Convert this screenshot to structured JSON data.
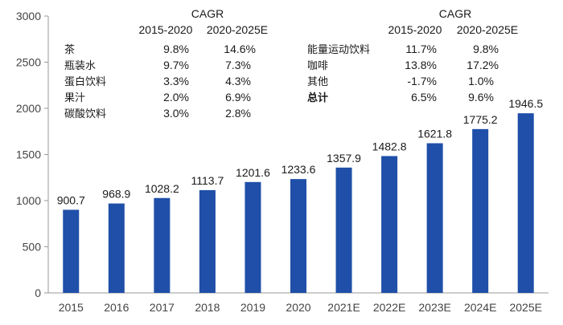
{
  "chart_data": {
    "type": "bar",
    "categories": [
      "2015",
      "2016",
      "2017",
      "2018",
      "2019",
      "2020",
      "2021E",
      "2022E",
      "2023E",
      "2024E",
      "2025E"
    ],
    "values": [
      900.7,
      968.9,
      1028.2,
      1113.7,
      1201.6,
      1233.6,
      1357.9,
      1482.8,
      1621.8,
      1775.2,
      1946.5
    ],
    "value_labels": [
      "900.7",
      "968.9",
      "1028.2",
      "1113.7",
      "1201.6",
      "1233.6",
      "1357.9",
      "1482.8",
      "1621.8",
      "1775.2",
      "1946.5"
    ],
    "ylim": [
      0,
      3000
    ],
    "yticks": [
      0,
      500,
      1000,
      1500,
      2000,
      2500,
      3000
    ],
    "ytick_labels": [
      "0",
      "500",
      "1000",
      "1500",
      "2000",
      "2500",
      "3000"
    ],
    "bar_color": "#1f4fa8",
    "grid": false,
    "legend": "none",
    "title": "",
    "xlabel": "",
    "ylabel": ""
  },
  "cagr_tables": [
    {
      "title": "CAGR",
      "headers": [
        "2015-2020",
        "2020-2025E"
      ],
      "rows": [
        {
          "name": "茶",
          "a": "9.8%",
          "b": "14.6%"
        },
        {
          "name": "瓶装水",
          "a": "9.7%",
          "b": "7.3%"
        },
        {
          "name": "蛋白饮料",
          "a": "3.3%",
          "b": "4.3%"
        },
        {
          "name": "果汁",
          "a": "2.0%",
          "b": "6.9%"
        },
        {
          "name": "碳酸饮料",
          "a": "3.0%",
          "b": "2.8%"
        }
      ]
    },
    {
      "title": "CAGR",
      "headers": [
        "2015-2020",
        "2020-2025E"
      ],
      "rows": [
        {
          "name": "能量运动饮料",
          "a": "11.7%",
          "b": "9.8%"
        },
        {
          "name": "咖啡",
          "a": "13.8%",
          "b": "17.2%"
        },
        {
          "name": "其他",
          "a": "-1.7%",
          "b": "1.0%"
        },
        {
          "name": "总计",
          "a": "6.5%",
          "b": "9.6%",
          "bold": true
        }
      ]
    }
  ]
}
